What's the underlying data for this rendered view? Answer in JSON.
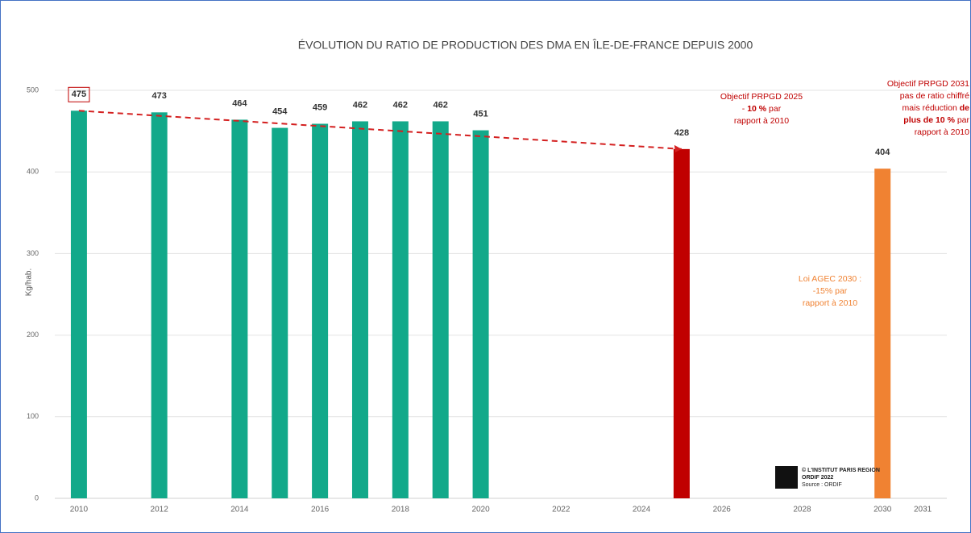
{
  "chart_data": {
    "type": "bar",
    "title": "ÉVOLUTION DU RATIO DE PRODUCTION DES DMA EN ÎLE-DE-FRANCE DEPUIS 2000",
    "y_label": "Kg/hab.",
    "x": [
      2010,
      2012,
      2014,
      2015,
      2016,
      2017,
      2018,
      2019,
      2020,
      2025,
      2030
    ],
    "values": [
      475,
      473,
      464,
      454,
      459,
      462,
      462,
      462,
      451,
      428,
      404
    ],
    "colors": [
      "#12a98a",
      "#12a98a",
      "#12a98a",
      "#12a98a",
      "#12a98a",
      "#12a98a",
      "#12a98a",
      "#12a98a",
      "#12a98a",
      "#c00000",
      "#f08232"
    ],
    "highlight_label": 0,
    "ylim": [
      0,
      500
    ],
    "yticks": [
      0,
      100,
      200,
      300,
      400,
      500
    ],
    "xlim": [
      2009.4,
      2031.6
    ],
    "xticks": [
      2010,
      2012,
      2014,
      2016,
      2018,
      2020,
      2022,
      2024,
      2026,
      2028,
      2030,
      2031
    ],
    "grid": true,
    "trend": {
      "x": [
        2010,
        2025
      ],
      "values": [
        475,
        428
      ],
      "color": "#d42020",
      "dashed": true
    },
    "annotations": [
      {
        "color": "#c00000",
        "lines": [
          [
            {
              "text": "Objectif PRPGD 2025"
            }
          ],
          [
            {
              "text": "- "
            },
            {
              "text": "10 %",
              "bold": true
            },
            {
              "text": " par"
            }
          ],
          [
            {
              "text": "rapport à 2010"
            }
          ]
        ]
      },
      {
        "color": "#f08232",
        "lines": [
          [
            {
              "text": "Loi AGEC 2030 :"
            }
          ],
          [
            {
              "text": "-15% par"
            }
          ],
          [
            {
              "text": "rapport à 2010"
            }
          ]
        ]
      },
      {
        "color": "#c00000",
        "lines": [
          [
            {
              "text": "Objectif PRPGD 2031"
            }
          ],
          [
            {
              "text": "pas de ratio chiffré"
            }
          ],
          [
            {
              "text": "mais réduction "
            },
            {
              "text": "de",
              "bold": true
            }
          ],
          [
            {
              "text": "plus de 10 %",
              "bold": true
            },
            {
              "text": " par"
            }
          ],
          [
            {
              "text": "rapport à 2010"
            }
          ]
        ]
      }
    ],
    "credit": [
      "© L'INSTITUT PARIS REGION",
      "ORDIF 2022",
      "Source : ORDIF"
    ]
  }
}
